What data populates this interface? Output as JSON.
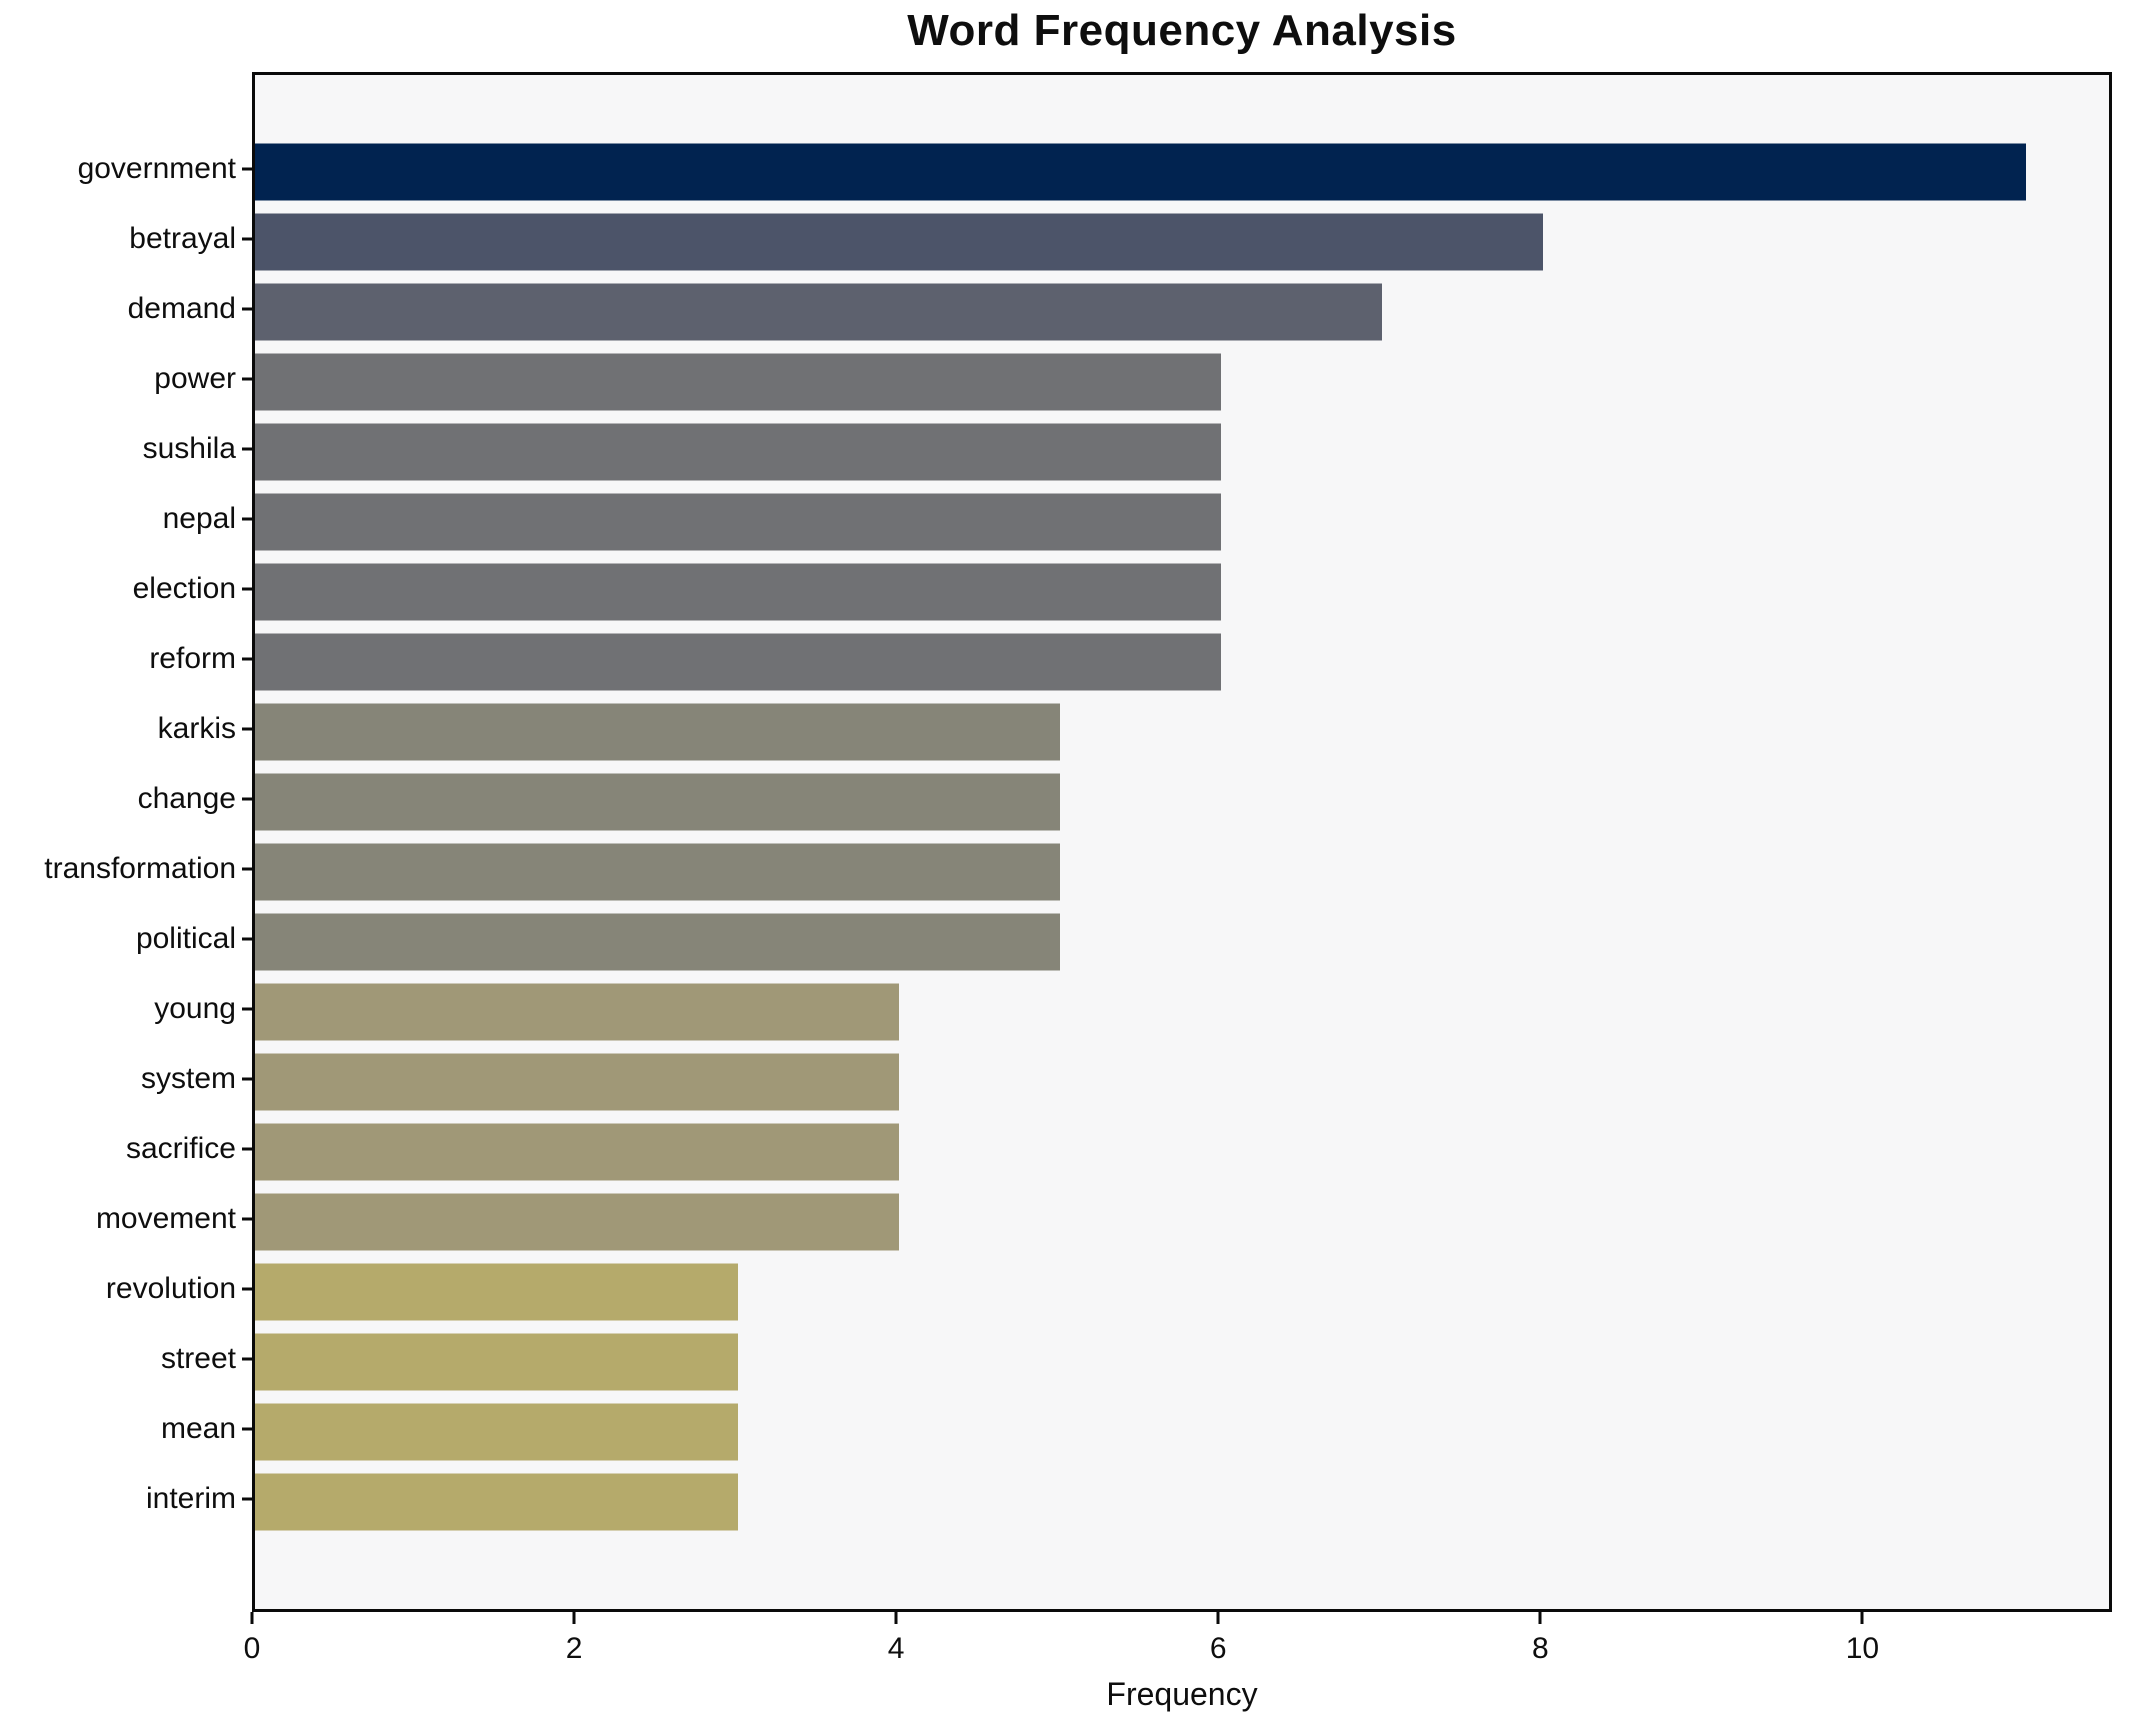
{
  "chart_data": {
    "type": "bar",
    "orientation": "horizontal",
    "title": "Word Frequency Analysis",
    "xlabel": "Frequency",
    "ylabel": "",
    "categories": [
      "government",
      "betrayal",
      "demand",
      "power",
      "sushila",
      "nepal",
      "election",
      "reform",
      "karkis",
      "change",
      "transformation",
      "political",
      "young",
      "system",
      "sacrifice",
      "movement",
      "revolution",
      "street",
      "mean",
      "interim"
    ],
    "values": [
      11,
      8,
      7,
      6,
      6,
      6,
      6,
      6,
      5,
      5,
      5,
      5,
      4,
      4,
      4,
      4,
      3,
      3,
      3,
      3
    ],
    "bar_colors": [
      "#012350",
      "#4c5469",
      "#5d616e",
      "#707174",
      "#707174",
      "#707174",
      "#707174",
      "#707174",
      "#868578",
      "#868578",
      "#868578",
      "#868578",
      "#a09877",
      "#a09877",
      "#a09877",
      "#a09877",
      "#b5aa6b",
      "#b5aa6b",
      "#b5aa6b",
      "#b5aa6b"
    ],
    "xticks": [
      0,
      2,
      4,
      6,
      8,
      10
    ],
    "xlim": [
      0,
      11.55
    ],
    "grid": false,
    "legend": null,
    "plot_background": "#f7f7f8",
    "figure_background": "#ffffff",
    "axis_color": "#0a0a0a",
    "text_color": "#0e0e0e"
  }
}
